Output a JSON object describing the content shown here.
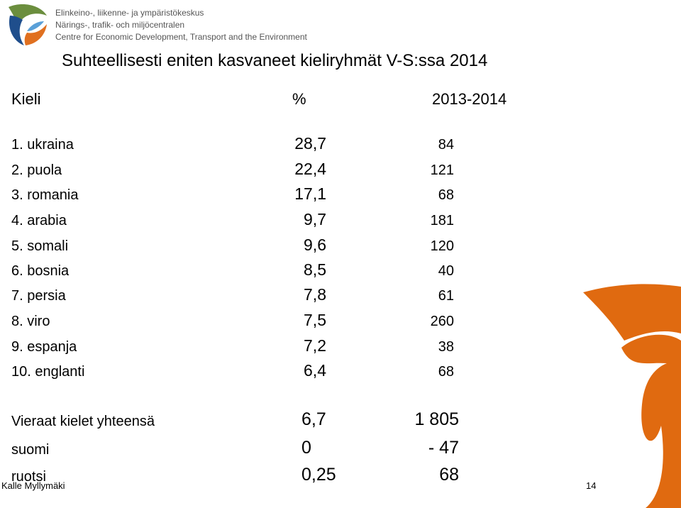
{
  "header": {
    "org_lines": [
      "Elinkeino-, liikenne- ja ympäristökeskus",
      "Närings-, trafik- och miljöcentralen",
      "Centre for Economic Development, Transport and the Environment"
    ]
  },
  "title": "Suhteellisesti eniten kasvaneet kieliryhmät V-S:ssa 2014",
  "table": {
    "header": [
      "Kieli",
      "%",
      "2013-2014"
    ],
    "rows": [
      [
        "1. ukraina",
        "28,7",
        "84"
      ],
      [
        "2. puola",
        "22,4",
        "121"
      ],
      [
        "3. romania",
        "17,1",
        "68"
      ],
      [
        "4. arabia",
        "9,7",
        "181"
      ],
      [
        "5. somali",
        "9,6",
        "120"
      ],
      [
        "6. bosnia",
        "8,5",
        "40"
      ],
      [
        "7. persia",
        "7,8",
        "61"
      ],
      [
        "8. viro",
        "7,5",
        "260"
      ],
      [
        "9. espanja",
        "7,2",
        "38"
      ],
      [
        "10. englanti",
        "6,4",
        "68"
      ]
    ],
    "totals": [
      [
        "Vieraat kielet yhteensä",
        "6,7",
        "1 805"
      ],
      [
        "suomi",
        "0",
        "- 47"
      ],
      [
        "ruotsi",
        "0,25",
        "68"
      ]
    ]
  },
  "footer": {
    "author": "Kalle Myllymäki",
    "page": "14"
  }
}
